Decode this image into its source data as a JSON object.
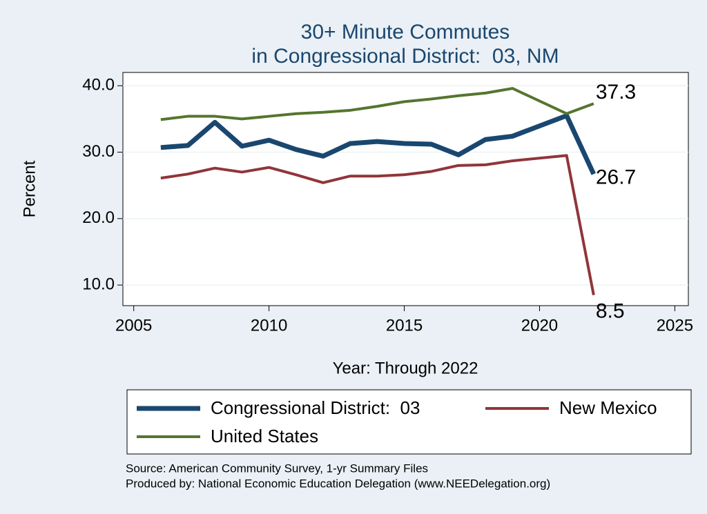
{
  "chart_data": {
    "type": "line",
    "title": [
      "30+ Minute Commutes",
      "in Congressional District:  03, NM"
    ],
    "xlabel": "Year: Through 2022",
    "ylabel": "Percent",
    "x": [
      2006,
      2007,
      2008,
      2009,
      2010,
      2011,
      2012,
      2013,
      2014,
      2015,
      2016,
      2017,
      2018,
      2019,
      2021,
      2022
    ],
    "series": [
      {
        "name": "Congressional District:  03",
        "color": "#1a476f",
        "values": [
          30.7,
          31.0,
          34.5,
          30.9,
          31.8,
          30.4,
          29.4,
          31.3,
          31.6,
          31.3,
          31.2,
          29.6,
          31.9,
          32.4,
          35.5,
          26.7
        ]
      },
      {
        "name": "New Mexico",
        "color": "#90353b",
        "values": [
          26.1,
          26.7,
          27.6,
          27.0,
          27.7,
          26.6,
          25.4,
          26.4,
          26.4,
          26.6,
          27.1,
          28.0,
          28.1,
          28.7,
          29.5,
          8.5
        ]
      },
      {
        "name": "United States",
        "color": "#55752f",
        "values": [
          34.9,
          35.4,
          35.4,
          35.0,
          35.4,
          35.8,
          36.0,
          36.3,
          36.9,
          37.6,
          38.0,
          38.5,
          38.9,
          39.6,
          35.8,
          37.3
        ]
      }
    ],
    "xlim": [
      2004.6,
      2025.5
    ],
    "ylim": [
      6.9,
      42
    ],
    "xticks": [
      2005,
      2010,
      2015,
      2020,
      2025
    ],
    "yticks": [
      {
        "value": 10,
        "label": "10.0"
      },
      {
        "value": 20,
        "label": "20.0"
      },
      {
        "value": 30,
        "label": "30.0"
      },
      {
        "value": 40,
        "label": "40.0"
      }
    ],
    "grid": true,
    "notes": [
      "Source: American Community Survey, 1-yr Summary Files",
      "Produced by: National Economic Education Delegation (www.NEEDelegation.org)"
    ]
  }
}
